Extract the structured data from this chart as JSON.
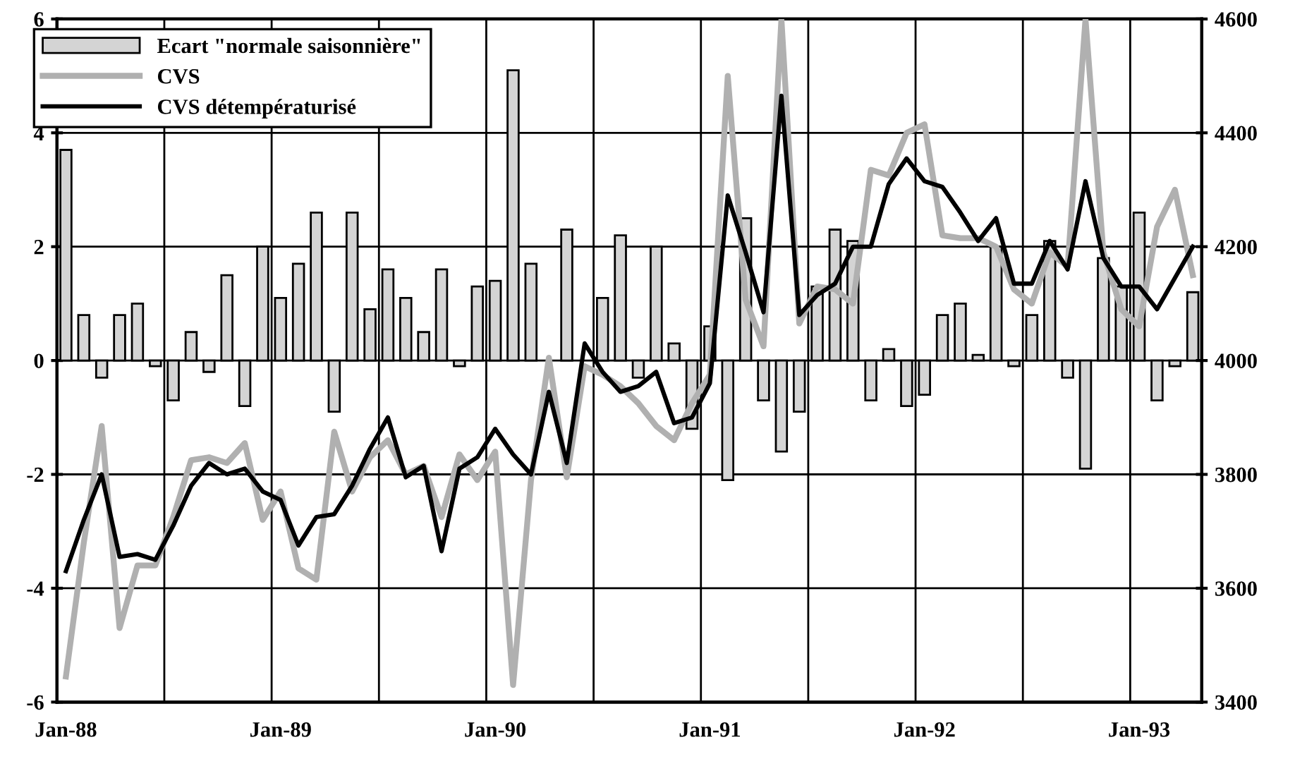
{
  "chart_data": {
    "type": "bar",
    "categories": [
      "Jan-88",
      null,
      null,
      null,
      null,
      null,
      null,
      null,
      null,
      null,
      null,
      null,
      "Jan-89",
      null,
      null,
      null,
      null,
      null,
      null,
      null,
      null,
      null,
      null,
      null,
      "Jan-90",
      null,
      null,
      null,
      null,
      null,
      null,
      null,
      null,
      null,
      null,
      null,
      "Jan-91",
      null,
      null,
      null,
      null,
      null,
      null,
      null,
      null,
      null,
      null,
      null,
      "Jan-92",
      null,
      null,
      null,
      null,
      null,
      null,
      null,
      null,
      null,
      null,
      null,
      "Jan-93",
      null,
      null,
      null
    ],
    "series": [
      {
        "name": "Ecart \"normale saisonnière\"",
        "color": "#d4d4d4",
        "values": [
          3.7,
          0.8,
          -0.3,
          0.8,
          1.0,
          -0.1,
          -0.7,
          0.5,
          -0.2,
          1.5,
          -0.8,
          2.0,
          1.1,
          1.7,
          2.6,
          -0.9,
          2.6,
          0.9,
          1.6,
          1.1,
          0.5,
          1.6,
          -0.1,
          1.3,
          1.4,
          5.1,
          1.7,
          null,
          2.3,
          null,
          1.1,
          2.2,
          -0.3,
          2.0,
          0.3,
          -1.2,
          0.6,
          -2.1,
          2.5,
          -0.7,
          -1.6,
          -0.9,
          1.3,
          2.3,
          2.1,
          -0.7,
          0.2,
          -0.8,
          -0.6,
          0.8,
          1.0,
          0.1,
          2.0,
          -0.1,
          0.8,
          2.1,
          -0.3,
          -1.9,
          1.8,
          1.3,
          2.6,
          -0.7,
          -0.1,
          1.2
        ]
      },
      {
        "name": "CVS",
        "type": "line",
        "axis": "y2",
        "color": "#b0b0b0",
        "values": [
          3445,
          3680,
          3885,
          3530,
          3640,
          3640,
          3725,
          3825,
          3830,
          3820,
          3855,
          3720,
          3770,
          3635,
          3615,
          3875,
          3770,
          3830,
          3860,
          3800,
          3815,
          3725,
          3835,
          3790,
          3840,
          3430,
          3790,
          4005,
          3795,
          3990,
          3975,
          3955,
          3925,
          3885,
          3860,
          3925,
          3975,
          4500,
          4107,
          4025,
          4600,
          4065,
          4130,
          4125,
          4100,
          4335,
          4325,
          4400,
          4415,
          4220,
          4215,
          4215,
          4200,
          4125,
          4100,
          4190,
          4165,
          4600,
          4190,
          4090,
          4060,
          4235,
          4300,
          4150
        ]
      },
      {
        "name": "CVS détempératurisé",
        "type": "line",
        "axis": "y2",
        "color": "#000000",
        "values": [
          3630,
          3720,
          3800,
          3655,
          3660,
          3650,
          3710,
          3780,
          3820,
          3800,
          3810,
          3770,
          3755,
          3675,
          3725,
          3730,
          3780,
          3845,
          3900,
          3795,
          3815,
          3665,
          3810,
          3830,
          3880,
          3835,
          3800,
          3945,
          3820,
          4030,
          3980,
          3945,
          3955,
          3980,
          3890,
          3900,
          3960,
          4290,
          4190,
          4085,
          4465,
          4080,
          4115,
          4135,
          4200,
          4200,
          4310,
          4355,
          4315,
          4305,
          4260,
          4210,
          4250,
          4135,
          4135,
          4210,
          4160,
          4315,
          4180,
          4130,
          4130,
          4090,
          4145,
          4200
        ]
      }
    ],
    "ylim": [
      -6,
      6
    ],
    "yticks": [
      -6,
      -4,
      -2,
      0,
      2,
      4,
      6
    ],
    "y2lim": [
      3400,
      4600
    ],
    "y2ticks": [
      3400,
      3600,
      3800,
      4000,
      4200,
      4400,
      4600
    ],
    "grid": true,
    "legend": "top left",
    "line_style": "solid"
  }
}
